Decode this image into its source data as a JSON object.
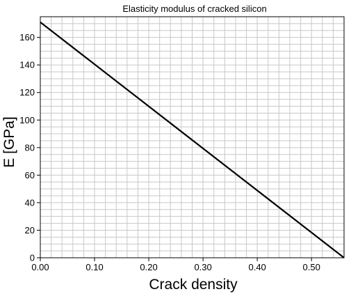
{
  "chart_data": {
    "type": "line",
    "title": "Elasticity modulus of cracked silicon",
    "xlabel": "Crack density",
    "ylabel": "E [GPa]",
    "xlim": [
      0.0,
      0.56
    ],
    "ylim": [
      0,
      175
    ],
    "x_ticks": [
      0.0,
      0.1,
      0.2,
      0.3,
      0.4,
      0.5
    ],
    "x_tick_labels": [
      "0.00",
      "0.10",
      "0.20",
      "0.30",
      "0.40",
      "0.50"
    ],
    "y_ticks": [
      0,
      20,
      40,
      60,
      80,
      100,
      120,
      140,
      160
    ],
    "y_tick_labels": [
      "0",
      "20",
      "40",
      "60",
      "80",
      "100",
      "120",
      "140",
      "160"
    ],
    "grid": true,
    "legend": "none",
    "series": [
      {
        "x": [
          0.0,
          0.56
        ],
        "y": [
          171,
          0
        ],
        "color": "#000000"
      }
    ],
    "colors": {
      "line": "#000000",
      "grid": "#c8c8c8",
      "frame": "#000000"
    }
  }
}
